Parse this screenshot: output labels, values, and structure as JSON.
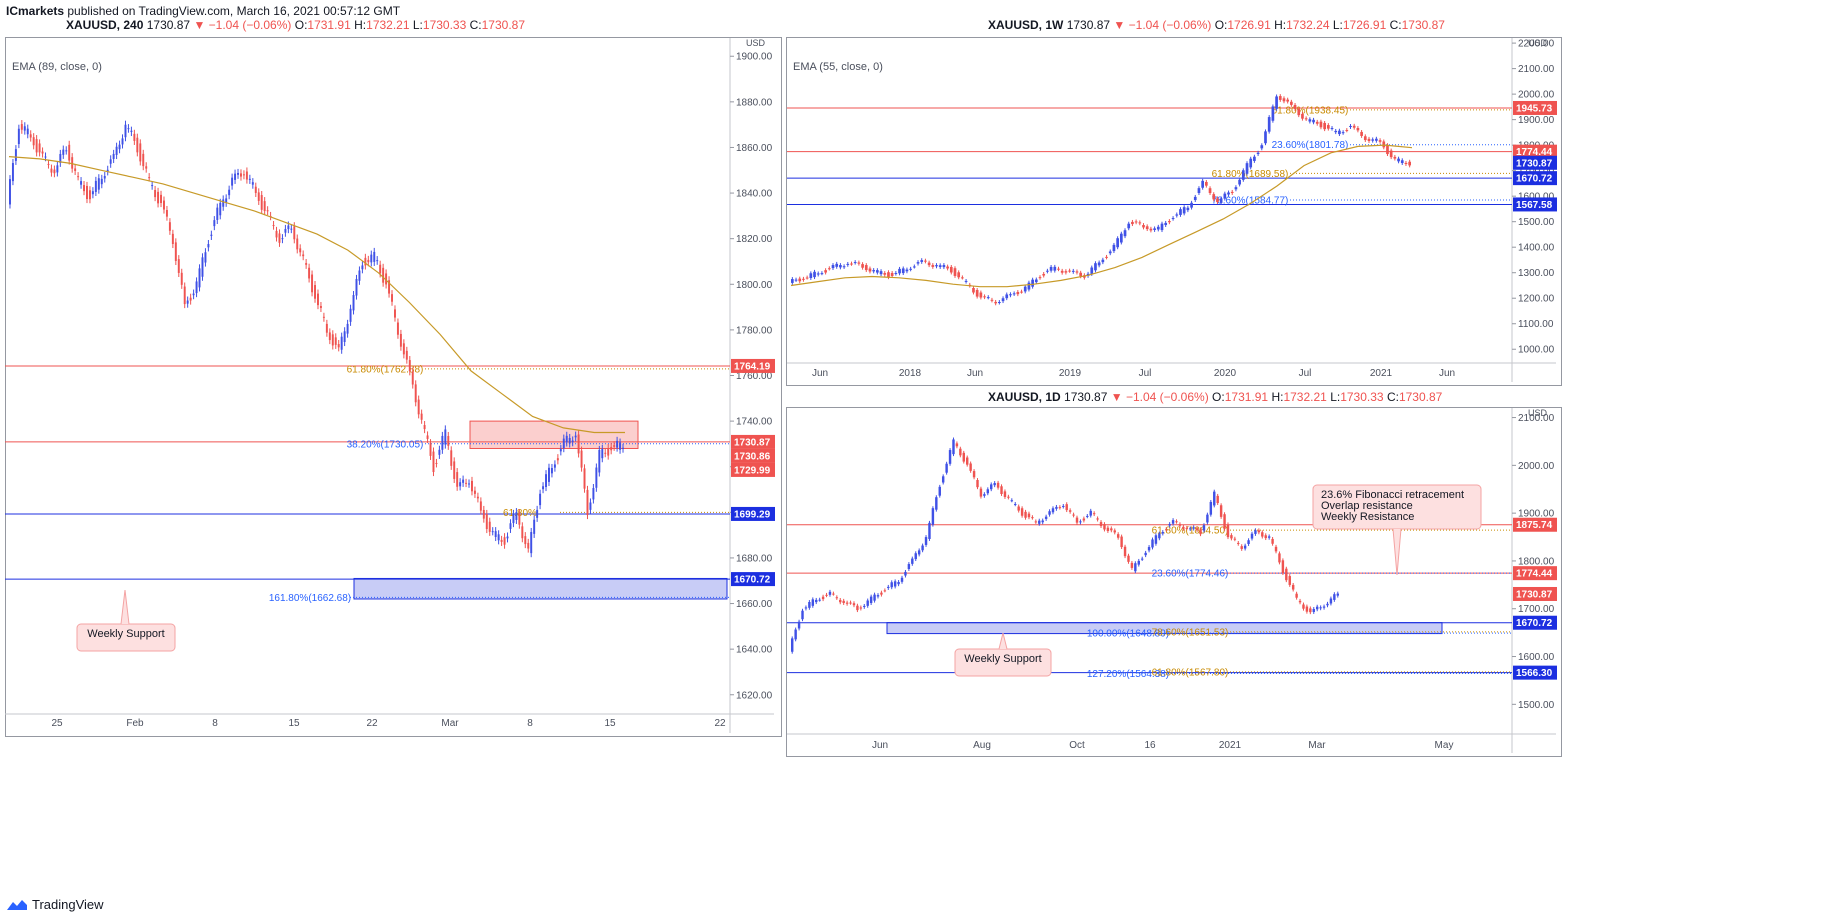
{
  "header": {
    "brand": "ICmarkets",
    "published": "published on TradingView.com, March 16, 2021 00:57:12 GMT"
  },
  "footer": {
    "logo": "TradingView"
  },
  "panels": [
    {
      "id": "p240",
      "title": {
        "symbol": "XAUUSD, 240",
        "price": "1730.87",
        "change": "▼ −1.04 (−0.06%)",
        "o": "1731.91",
        "h": "1732.21",
        "l": "1730.33",
        "c": "1730.87"
      },
      "ema_label": "EMA (89, close, 0)",
      "currency": "USD"
    },
    {
      "id": "p1w",
      "title": {
        "symbol": "XAUUSD, 1W",
        "price": "1730.87",
        "change": "▼ −1.04 (−0.06%)",
        "o": "1726.91",
        "h": "1732.24",
        "l": "1726.91",
        "c": "1730.87"
      },
      "ema_label": "EMA (55, close, 0)",
      "currency": "USD"
    },
    {
      "id": "p1d",
      "title": {
        "symbol": "XAUUSD, 1D",
        "price": "1730.87",
        "change": "▼ −1.04 (−0.06%)",
        "o": "1731.91",
        "h": "1732.21",
        "l": "1730.33",
        "c": "1730.87"
      },
      "ema_label": "",
      "currency": "USD"
    }
  ],
  "chart_data": [
    {
      "panel": "p240",
      "type": "candlestick",
      "ylim": [
        1612,
        1908
      ],
      "yticks": [
        1900,
        1880,
        1860,
        1840,
        1820,
        1800,
        1780,
        1760,
        1740,
        1720,
        1700,
        1680,
        1660,
        1640,
        1620
      ],
      "xlabels": [
        "25",
        "Feb",
        "8",
        "15",
        "22",
        "Mar",
        "8",
        "15",
        "22"
      ],
      "close_path": [
        1835,
        1870,
        1865,
        1855,
        1850,
        1860,
        1845,
        1838,
        1848,
        1855,
        1870,
        1860,
        1845,
        1835,
        1820,
        1790,
        1800,
        1820,
        1835,
        1845,
        1850,
        1840,
        1830,
        1820,
        1825,
        1810,
        1795,
        1780,
        1770,
        1790,
        1810,
        1812,
        1800,
        1780,
        1760,
        1740,
        1720,
        1735,
        1710,
        1715,
        1700,
        1690,
        1688,
        1700,
        1682,
        1710,
        1720,
        1730,
        1735,
        1700,
        1725,
        1728,
        1730
      ],
      "ema_path": [
        1856,
        1855,
        1853,
        1850,
        1847,
        1844,
        1840,
        1836,
        1832,
        1827,
        1822,
        1815,
        1805,
        1792,
        1778,
        1762,
        1752,
        1742,
        1737,
        1735,
        1735
      ],
      "hlines": [
        {
          "price": 1764.19,
          "label": "1764.19",
          "color": "#ef5350"
        },
        {
          "price": 1730.87,
          "label": "1730.87",
          "color": "#ef5350"
        },
        {
          "price": 1699.29,
          "label": "1699.29",
          "color": "#1c2fe0"
        },
        {
          "price": 1670.72,
          "label": "1670.72",
          "color": "#1c2fe0"
        }
      ],
      "extra_labels": [
        {
          "text": "1730.86",
          "color": "#ef5350"
        },
        {
          "text": "1729.99",
          "color": "#ef5350"
        }
      ],
      "fibs": [
        {
          "text": "61.80%(1762.88)",
          "price": 1762.88,
          "color": "#c88a00"
        },
        {
          "text": "38.20%(1730.05)",
          "price": 1730.05,
          "color": "#2962ff"
        },
        {
          "text": "61.80%",
          "price": 1700,
          "color": "#c88a00"
        },
        {
          "text": "161.80%(1662.68)",
          "price": 1662.68,
          "color": "#2962ff"
        }
      ],
      "zones": [
        {
          "from": 1728,
          "to": 1740,
          "color": "red"
        },
        {
          "from": 1662,
          "to": 1671,
          "color": "blue"
        }
      ],
      "annotations": [
        {
          "text": "Weekly Support"
        }
      ]
    },
    {
      "panel": "p1w",
      "type": "candlestick",
      "ylim": [
        950,
        2220
      ],
      "yticks": [
        2200,
        2100,
        2000,
        1900,
        1800,
        1700,
        1600,
        1500,
        1400,
        1300,
        1200,
        1100,
        1000
      ],
      "xlabels": [
        "Jun",
        "2018",
        "Jun",
        "2019",
        "Jul",
        "2020",
        "Jul",
        "2021",
        "Jun"
      ],
      "close_path": [
        1260,
        1280,
        1300,
        1320,
        1340,
        1325,
        1300,
        1290,
        1320,
        1340,
        1330,
        1310,
        1260,
        1200,
        1190,
        1210,
        1240,
        1290,
        1320,
        1300,
        1290,
        1340,
        1400,
        1500,
        1480,
        1470,
        1520,
        1560,
        1650,
        1580,
        1620,
        1720,
        1800,
        2000,
        1950,
        1900,
        1880,
        1850,
        1870,
        1830,
        1810,
        1740,
        1730
      ],
      "ema_path": [
        1250,
        1265,
        1280,
        1285,
        1280,
        1270,
        1255,
        1245,
        1245,
        1255,
        1270,
        1290,
        1320,
        1360,
        1410,
        1460,
        1510,
        1570,
        1640,
        1720,
        1770,
        1795,
        1800,
        1790
      ],
      "hlines": [
        {
          "price": 1945.73,
          "label": "1945.73",
          "color": "#ef5350"
        },
        {
          "price": 1774.44,
          "label": "1774.44",
          "color": "#ef5350"
        },
        {
          "price": 1670.72,
          "label": "1670.72",
          "color": "#1c2fe0"
        },
        {
          "price": 1567.58,
          "label": "1567.58",
          "color": "#1c2fe0"
        }
      ],
      "extra_labels": [
        {
          "text": "1730.87",
          "color": "#1c2fe0"
        }
      ],
      "fibs": [
        {
          "text": "61.80%(1938.45)",
          "price": 1938.45,
          "color": "#c88a00"
        },
        {
          "text": "23.60%(1801.78)",
          "price": 1801.78,
          "color": "#2962ff"
        },
        {
          "text": "61.80%(1689.58)",
          "price": 1689.58,
          "color": "#c88a00"
        },
        {
          "text": "78.60%(1584.77)",
          "price": 1584.77,
          "color": "#2962ff"
        }
      ]
    },
    {
      "panel": "p1d",
      "type": "candlestick",
      "ylim": [
        1440,
        2120
      ],
      "yticks": [
        2100,
        2000,
        1900,
        1800,
        1700,
        1600,
        1500
      ],
      "xlabels": [
        "Jun",
        "Aug",
        "Oct",
        "16",
        "2021",
        "Mar",
        "May"
      ],
      "close_path": [
        1610,
        1700,
        1720,
        1730,
        1715,
        1700,
        1720,
        1740,
        1760,
        1800,
        1850,
        1960,
        2050,
        2000,
        1940,
        1960,
        1930,
        1900,
        1880,
        1900,
        1920,
        1880,
        1900,
        1870,
        1850,
        1780,
        1820,
        1860,
        1880,
        1870,
        1860,
        1940,
        1850,
        1830,
        1860,
        1850,
        1780,
        1720,
        1690,
        1710,
        1730
      ],
      "hlines": [
        {
          "price": 1875.74,
          "label": "1875.74",
          "color": "#ef5350"
        },
        {
          "price": 1774.44,
          "label": "1774.44",
          "color": "#ef5350"
        },
        {
          "price": 1670.72,
          "label": "1670.72",
          "color": "#1c2fe0"
        },
        {
          "price": 1566.3,
          "label": "1566.30",
          "color": "#1c2fe0"
        }
      ],
      "extra_labels": [
        {
          "text": "1730.87",
          "color": "#ef5350"
        }
      ],
      "fibs": [
        {
          "text": "61.80%(1864.50)",
          "price": 1864.5,
          "color": "#c88a00"
        },
        {
          "text": "23.60%(1774.46)",
          "price": 1774.46,
          "color": "#2962ff"
        },
        {
          "text": "100.00%(1648.89)",
          "price": 1648.89,
          "color": "#2962ff"
        },
        {
          "text": "78.60%(1651.53)",
          "price": 1651.53,
          "color": "#c88a00"
        },
        {
          "text": "127.20%(1564.38)",
          "price": 1564.38,
          "color": "#2962ff"
        },
        {
          "text": "61.80%(1567.80)",
          "price": 1567.8,
          "color": "#c88a00"
        }
      ],
      "zones": [
        {
          "from": 1648,
          "to": 1671,
          "color": "blue"
        }
      ],
      "annotations": [
        {
          "text": "Weekly Support"
        },
        {
          "text": "23.6% Fibonacci retracement\nOverlap resistance\nWeekly Resistance"
        }
      ]
    }
  ]
}
